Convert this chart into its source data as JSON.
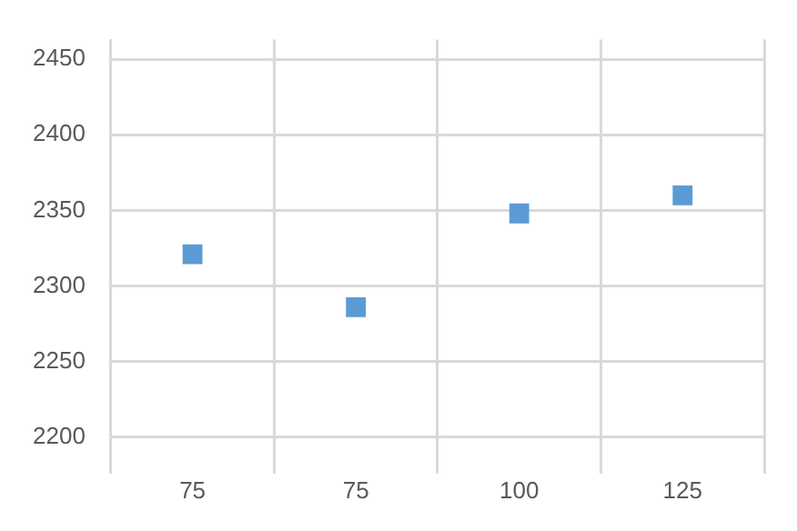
{
  "chart_data": {
    "type": "scatter",
    "categories": [
      "75",
      "75",
      "100",
      "125"
    ],
    "series": [
      {
        "color": "#5b9bd5",
        "values": [
          2321,
          2286,
          2348,
          2360
        ]
      }
    ],
    "ylim": [
      2200,
      2463
    ],
    "yticks": [
      2200,
      2250,
      2300,
      2350,
      2400,
      2450
    ],
    "grid": true,
    "marker": "square",
    "legend": false
  }
}
